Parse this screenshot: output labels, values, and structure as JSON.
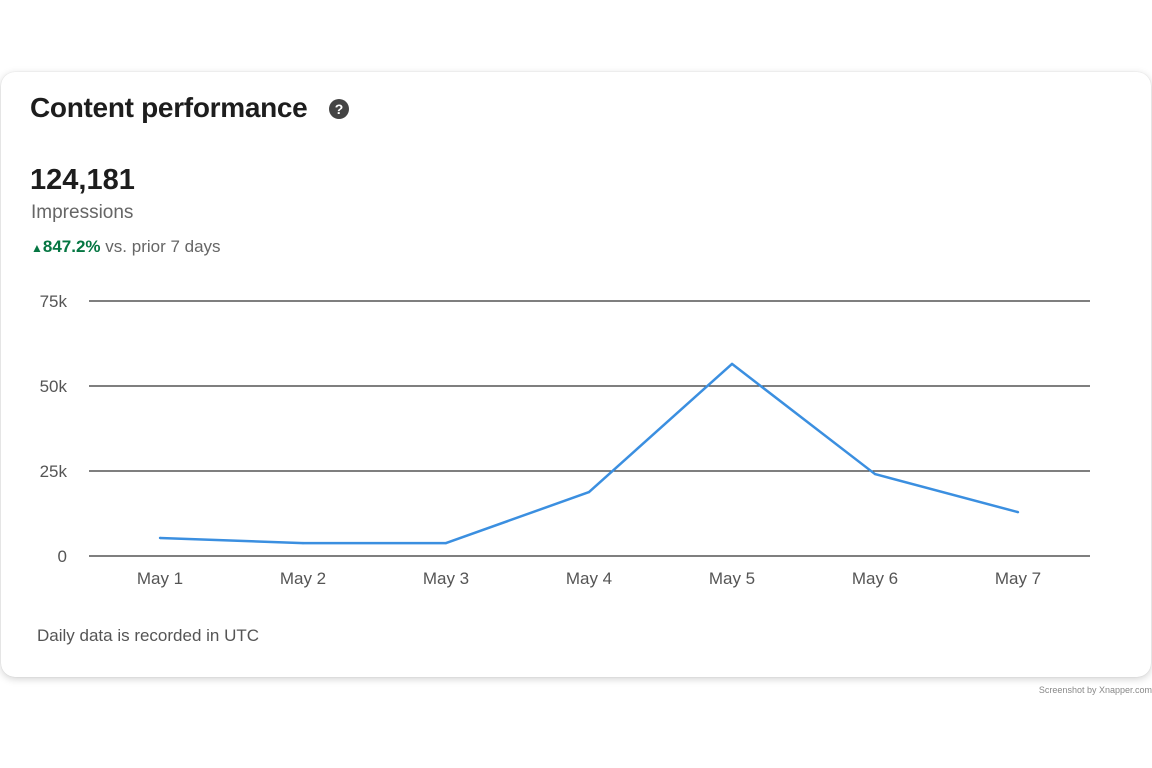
{
  "card": {
    "title": "Content performance",
    "help_icon": "question-circle-icon",
    "metric_value": "124,181",
    "metric_label": "Impressions",
    "change_icon": "triangle-up-icon",
    "change_value": "847.2%",
    "change_text": "vs. prior 7 days",
    "footnote": "Daily data is recorded in UTC"
  },
  "watermark": "Screenshot by Xnapper.com",
  "chart_data": {
    "type": "line",
    "categories": [
      "May 1",
      "May 2",
      "May 3",
      "May 4",
      "May 5",
      "May 6",
      "May 7"
    ],
    "series": [
      {
        "values": [
          5300,
          3800,
          3800,
          18800,
          56500,
          24100,
          12900
        ],
        "color": "#3b8fe0"
      }
    ],
    "yticks": [
      0,
      25000,
      50000,
      75000
    ],
    "ytick_labels": [
      "0",
      "25k",
      "50k",
      "75k"
    ],
    "ylim": [
      0,
      75000
    ],
    "grid": true,
    "colors": {
      "positive": "#057642",
      "line": "#3b8fe0"
    }
  }
}
